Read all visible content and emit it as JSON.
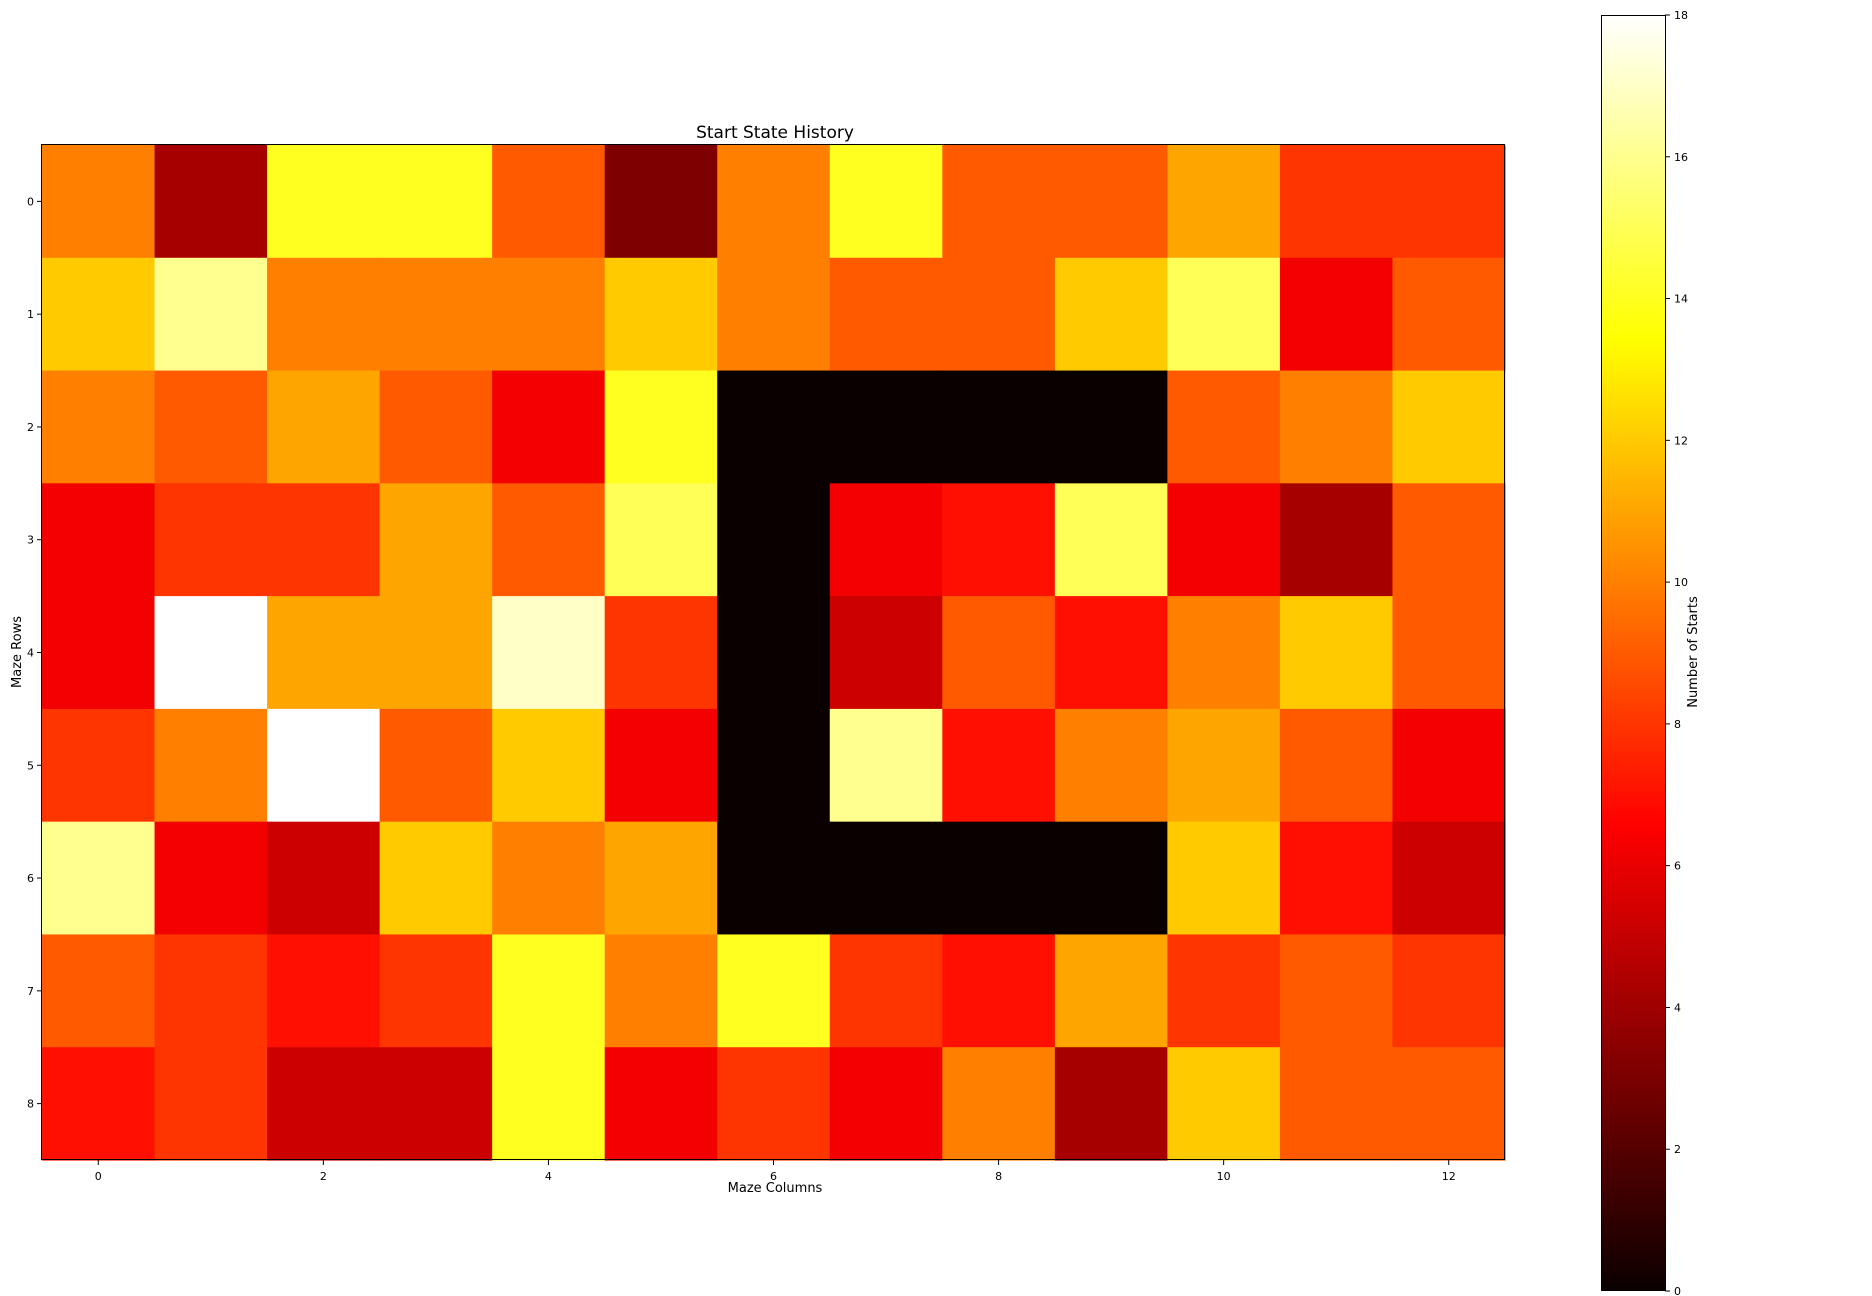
{
  "chart_data": {
    "type": "heatmap",
    "title": "Start State History",
    "xlabel": "Maze Columns",
    "ylabel": "Maze Rows",
    "colorbar_label": "Number of Starts",
    "colormap": "hot",
    "vmin": 0,
    "vmax": 18,
    "x_ticks": [
      0,
      2,
      4,
      6,
      8,
      10,
      12
    ],
    "y_ticks": [
      0,
      1,
      2,
      3,
      4,
      5,
      6,
      7,
      8
    ],
    "colorbar_ticks": [
      0,
      2,
      4,
      6,
      8,
      10,
      12,
      14,
      16,
      18
    ],
    "rows": 9,
    "columns": 13,
    "values": [
      [
        10,
        4,
        14,
        14,
        9,
        3,
        10,
        14,
        9,
        9,
        11,
        8,
        8
      ],
      [
        12,
        16,
        10,
        10,
        10,
        12,
        10,
        9,
        9,
        12,
        15,
        6,
        9
      ],
      [
        10,
        9,
        11,
        9,
        6,
        14,
        0,
        0,
        0,
        0,
        9,
        10,
        12
      ],
      [
        6,
        8,
        8,
        11,
        9,
        15,
        0,
        6,
        7,
        15,
        6,
        4,
        9
      ],
      [
        6,
        18,
        11,
        11,
        17,
        8,
        0,
        5,
        9,
        7,
        10,
        12,
        9
      ],
      [
        8,
        10,
        18,
        9,
        12,
        6,
        0,
        16,
        7,
        10,
        11,
        9,
        6
      ],
      [
        16,
        6,
        5,
        12,
        10,
        11,
        0,
        0,
        0,
        0,
        12,
        7,
        5
      ],
      [
        9,
        8,
        7,
        8,
        14,
        10,
        14,
        8,
        7,
        11,
        8,
        9,
        8
      ],
      [
        7,
        8,
        5,
        5,
        14,
        6,
        8,
        6,
        10,
        4,
        12,
        9,
        9
      ]
    ]
  }
}
